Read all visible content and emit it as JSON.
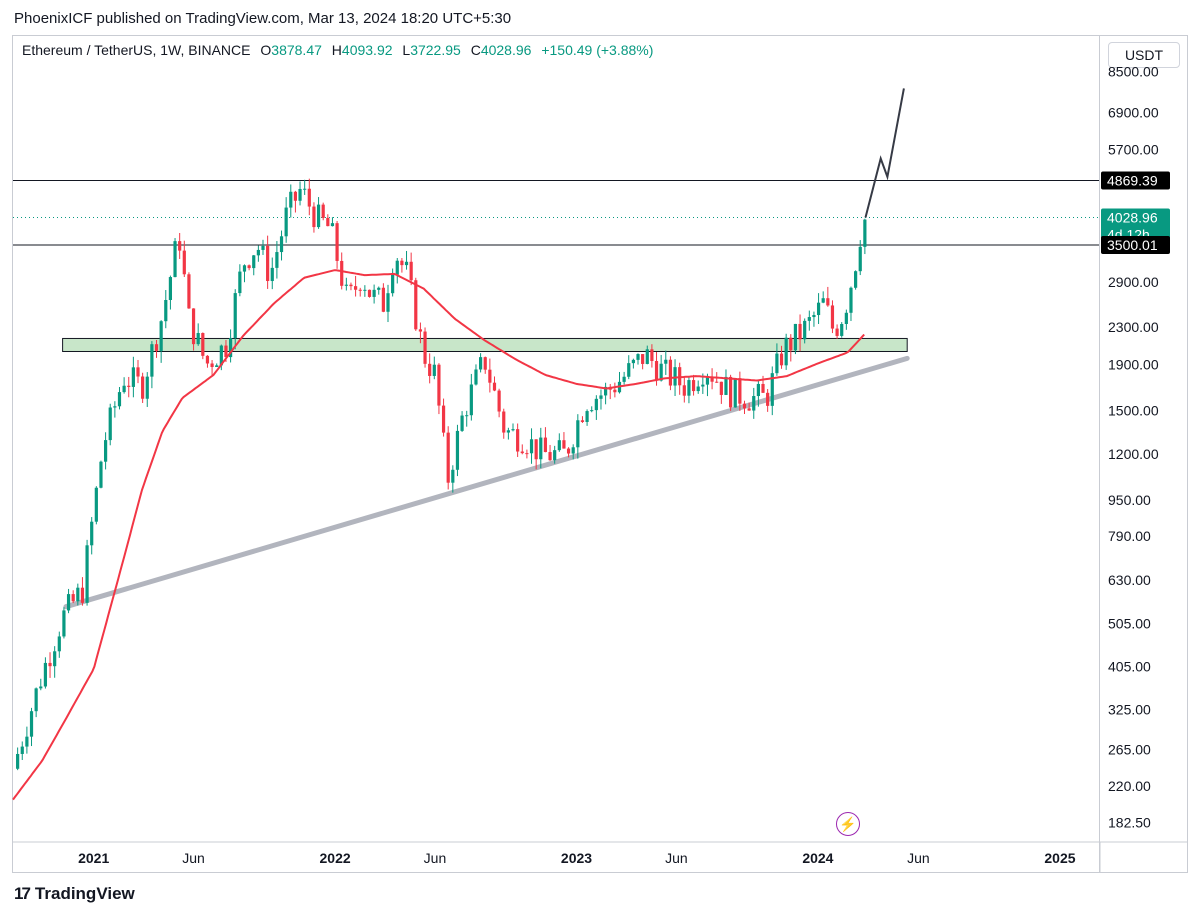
{
  "header": {
    "published": "PhoenixICF published on TradingView.com, Mar 13, 2024 18:20 UTC+5:30"
  },
  "symbol": {
    "name": "Ethereum / TetherUS, 1W, BINANCE",
    "o_label": "O",
    "o_value": "3878.47",
    "h_label": "H",
    "h_value": "4093.92",
    "l_label": "L",
    "l_value": "3722.95",
    "c_label": "C",
    "c_value": "4028.96",
    "change": "+150.49 (+3.88%)"
  },
  "currency_button": "USDT",
  "brand": {
    "logo": "17",
    "name": "TradingView"
  },
  "colors": {
    "up": "#089981",
    "down": "#f23645",
    "ma": "#f23645",
    "zone": "#c8e6c9",
    "trendline": "#b2b5be",
    "projection": "#363a45"
  },
  "chart_data": {
    "type": "candlestick",
    "timeframe": "1W",
    "scale": "log",
    "ylim": [
      165,
      10200
    ],
    "xlim": [
      "2020-09-01",
      "2025-03-01"
    ],
    "y_ticks": [
      "8500.00",
      "6900.00",
      "5700.00",
      "2900.00",
      "2300.00",
      "1900.00",
      "1500.00",
      "1200.00",
      "950.00",
      "790.00",
      "630.00",
      "505.00",
      "405.00",
      "325.00",
      "265.00",
      "220.00",
      "182.50"
    ],
    "x_ticks": [
      {
        "label": "2021",
        "date": "2021-01-01",
        "bold": true
      },
      {
        "label": "Jun",
        "date": "2021-06-01",
        "bold": false
      },
      {
        "label": "2022",
        "date": "2022-01-01",
        "bold": true
      },
      {
        "label": "Jun",
        "date": "2022-06-01",
        "bold": false
      },
      {
        "label": "2023",
        "date": "2023-01-01",
        "bold": true
      },
      {
        "label": "Jun",
        "date": "2023-06-01",
        "bold": false
      },
      {
        "label": "2024",
        "date": "2024-01-01",
        "bold": true
      },
      {
        "label": "Jun",
        "date": "2024-06-01",
        "bold": false
      },
      {
        "label": "2025",
        "date": "2025-01-01",
        "bold": true
      }
    ],
    "price_labels": [
      {
        "value": 4869.39,
        "text": "4869.39",
        "style": "dark"
      },
      {
        "value": 4028.96,
        "text": "4028.96",
        "sub": "4d 12h",
        "style": "green"
      },
      {
        "value": 3500.01,
        "text": "3500.01",
        "style": "dark"
      }
    ],
    "horizontal_lines": [
      4869.39,
      3500.01
    ],
    "last_price_line": 4028.96,
    "support_zone": {
      "low": 2030,
      "high": 2170,
      "from": "2020-11-15",
      "to": "2024-05-15"
    },
    "trendline": {
      "from": {
        "date": "2020-11-20",
        "price": 550
      },
      "to": {
        "date": "2024-05-15",
        "price": 1960
      }
    },
    "projection_path": [
      {
        "date": "2024-03-13",
        "price": 4029
      },
      {
        "date": "2024-04-05",
        "price": 5450
      },
      {
        "date": "2024-04-15",
        "price": 4960
      },
      {
        "date": "2024-05-10",
        "price": 7800
      }
    ],
    "ma_anchors": [
      [
        "2020-09-01",
        205
      ],
      [
        "2020-10-15",
        250
      ],
      [
        "2020-11-20",
        310
      ],
      [
        "2021-01-01",
        400
      ],
      [
        "2021-02-15",
        700
      ],
      [
        "2021-03-15",
        1000
      ],
      [
        "2021-04-15",
        1350
      ],
      [
        "2021-05-15",
        1600
      ],
      [
        "2021-07-01",
        1800
      ],
      [
        "2021-08-15",
        2200
      ],
      [
        "2021-10-01",
        2600
      ],
      [
        "2021-11-15",
        2960
      ],
      [
        "2022-01-01",
        3080
      ],
      [
        "2022-02-15",
        3000
      ],
      [
        "2022-04-01",
        3020
      ],
      [
        "2022-05-15",
        2800
      ],
      [
        "2022-07-01",
        2400
      ],
      [
        "2022-08-15",
        2150
      ],
      [
        "2022-10-01",
        1950
      ],
      [
        "2022-11-15",
        1800
      ],
      [
        "2023-01-01",
        1720
      ],
      [
        "2023-02-15",
        1680
      ],
      [
        "2023-04-01",
        1720
      ],
      [
        "2023-05-15",
        1770
      ],
      [
        "2023-07-01",
        1790
      ],
      [
        "2023-08-15",
        1770
      ],
      [
        "2023-10-01",
        1750
      ],
      [
        "2023-11-15",
        1790
      ],
      [
        "2024-01-01",
        1910
      ],
      [
        "2024-02-15",
        2020
      ],
      [
        "2024-03-13",
        2230
      ]
    ],
    "price_anchors": [
      [
        "2020-09-01",
        240
      ],
      [
        "2020-10-15",
        390
      ],
      [
        "2020-11-15",
        520
      ],
      [
        "2020-12-15",
        600
      ],
      [
        "2021-01-15",
        1250
      ],
      [
        "2021-02-15",
        1780
      ],
      [
        "2021-03-15",
        1700
      ],
      [
        "2021-04-15",
        2450
      ],
      [
        "2021-05-10",
        3700
      ],
      [
        "2021-05-25",
        2400
      ],
      [
        "2021-06-20",
        1900
      ],
      [
        "2021-07-20",
        2100
      ],
      [
        "2021-08-15",
        3200
      ],
      [
        "2021-09-05",
        3500
      ],
      [
        "2021-09-25",
        3000
      ],
      [
        "2021-10-20",
        4100
      ],
      [
        "2021-11-10",
        4650
      ],
      [
        "2021-12-05",
        4000
      ],
      [
        "2021-12-25",
        3800
      ],
      [
        "2022-01-20",
        2600
      ],
      [
        "2022-02-10",
        3000
      ],
      [
        "2022-02-25",
        2700
      ],
      [
        "2022-03-15",
        2600
      ],
      [
        "2022-04-01",
        3400
      ],
      [
        "2022-04-20",
        3000
      ],
      [
        "2022-05-15",
        2000
      ],
      [
        "2022-06-01",
        1800
      ],
      [
        "2022-06-20",
        1050
      ],
      [
        "2022-07-15",
        1500
      ],
      [
        "2022-08-15",
        1950
      ],
      [
        "2022-09-15",
        1350
      ],
      [
        "2022-10-15",
        1300
      ],
      [
        "2022-11-10",
        1200
      ],
      [
        "2022-12-15",
        1200
      ],
      [
        "2023-01-15",
        1580
      ],
      [
        "2023-02-15",
        1650
      ],
      [
        "2023-03-15",
        1790
      ],
      [
        "2023-04-15",
        2000
      ],
      [
        "2023-05-15",
        1810
      ],
      [
        "2023-06-15",
        1700
      ],
      [
        "2023-07-15",
        1880
      ],
      [
        "2023-08-20",
        1650
      ],
      [
        "2023-09-20",
        1600
      ],
      [
        "2023-10-15",
        1600
      ],
      [
        "2023-11-10",
        2050
      ],
      [
        "2023-12-15",
        2300
      ],
      [
        "2024-01-10",
        2600
      ],
      [
        "2024-01-25",
        2250
      ],
      [
        "2024-02-10",
        2500
      ],
      [
        "2024-02-25",
        3100
      ],
      [
        "2024-03-05",
        3700
      ],
      [
        "2024-03-13",
        4029
      ]
    ]
  }
}
